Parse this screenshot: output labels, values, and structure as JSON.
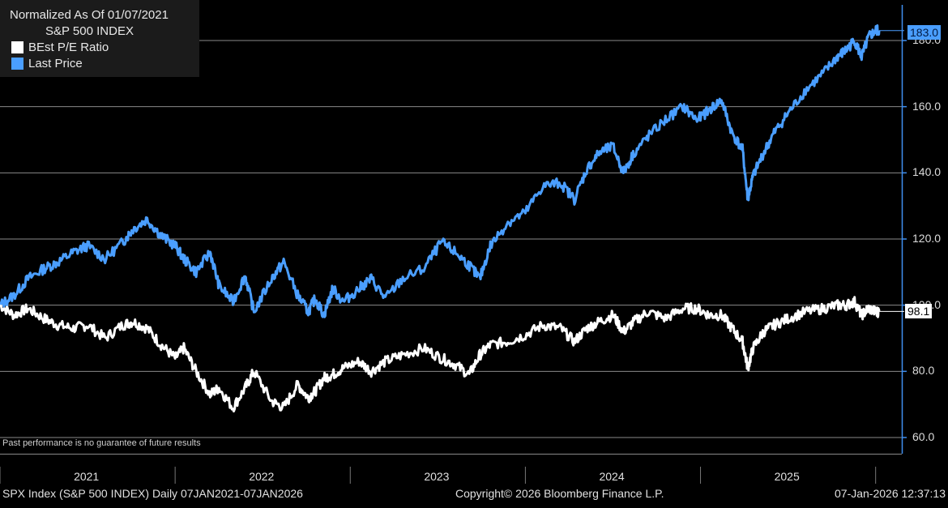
{
  "legend": {
    "title_line1": "Normalized As Of 01/07/2021",
    "title_line2": "S&P 500 INDEX",
    "series1_label": "BEst P/E Ratio",
    "series2_label": "Last Price"
  },
  "disclaimer": "Past performance is no guarantee of future results",
  "footer": {
    "left": "SPX Index (S&P 500 INDEX) Daily 07JAN2021-07JAN2026",
    "center": "Copyright© 2026 Bloomberg Finance L.P.",
    "right": "07-Jan-2026 12:37:13"
  },
  "colors": {
    "pe": "#ffffff",
    "price": "#4a9eff",
    "grid": "#8a8a8a",
    "axis": "#3f8ff0"
  },
  "chart_data": {
    "type": "line",
    "title": "S&P 500 INDEX — Normalized As Of 01/07/2021",
    "xlabel": "",
    "ylabel": "",
    "ylim": [
      60,
      185
    ],
    "yticks": [
      60,
      80,
      100,
      120,
      140,
      160,
      180
    ],
    "ytick_labels": [
      "60.0",
      "80.0",
      "100.0",
      "120.0",
      "140.0",
      "160.0",
      "180.0"
    ],
    "xlim": [
      2021.0,
      2026.02
    ],
    "year_labels": [
      "2021",
      "2022",
      "2023",
      "2024",
      "2025"
    ],
    "last_value_labels": {
      "price": "183.0",
      "pe": "98.1"
    },
    "series": [
      {
        "name": "Last Price",
        "color": "#4a9eff",
        "x": [
          2021.0,
          2021.08,
          2021.16,
          2021.25,
          2021.33,
          2021.42,
          2021.5,
          2021.6,
          2021.7,
          2021.76,
          2021.84,
          2021.92,
          2022.0,
          2022.05,
          2022.12,
          2022.2,
          2022.25,
          2022.33,
          2022.4,
          2022.45,
          2022.55,
          2022.62,
          2022.7,
          2022.76,
          2022.8,
          2022.85,
          2022.9,
          2022.96,
          2023.05,
          2023.12,
          2023.2,
          2023.3,
          2023.42,
          2023.52,
          2023.6,
          2023.68,
          2023.74,
          2023.8,
          2023.9,
          2024.0,
          2024.1,
          2024.2,
          2024.28,
          2024.35,
          2024.42,
          2024.5,
          2024.56,
          2024.62,
          2024.7,
          2024.8,
          2024.9,
          2024.98,
          2025.05,
          2025.12,
          2025.18,
          2025.24,
          2025.27,
          2025.3,
          2025.36,
          2025.42,
          2025.5,
          2025.6,
          2025.7,
          2025.78,
          2025.83,
          2025.88,
          2025.92,
          2025.96,
          2026.0,
          2026.02
        ],
        "values": [
          100,
          103,
          108,
          111,
          113,
          116,
          118,
          114,
          119,
          123,
          126,
          121,
          118,
          114,
          110,
          116,
          106,
          101,
          109,
          98,
          108,
          113,
          103,
          98,
          102,
          97,
          105,
          101,
          105,
          108,
          102,
          108,
          111,
          119,
          116,
          112,
          108,
          118,
          125,
          128,
          136,
          137,
          132,
          141,
          146,
          148,
          140,
          146,
          151,
          156,
          160,
          156,
          159,
          162,
          152,
          147,
          132,
          139,
          146,
          152,
          158,
          165,
          170,
          175,
          177,
          180,
          175,
          181,
          183,
          183
        ]
      },
      {
        "name": "BEst P/E Ratio",
        "color": "#ffffff",
        "x": [
          2021.0,
          2021.08,
          2021.16,
          2021.25,
          2021.33,
          2021.42,
          2021.5,
          2021.6,
          2021.7,
          2021.76,
          2021.84,
          2021.92,
          2022.0,
          2022.05,
          2022.12,
          2022.2,
          2022.25,
          2022.33,
          2022.4,
          2022.45,
          2022.55,
          2022.62,
          2022.7,
          2022.76,
          2022.8,
          2022.85,
          2022.9,
          2022.96,
          2023.05,
          2023.12,
          2023.2,
          2023.3,
          2023.42,
          2023.52,
          2023.6,
          2023.68,
          2023.74,
          2023.8,
          2023.9,
          2024.0,
          2024.1,
          2024.2,
          2024.28,
          2024.35,
          2024.42,
          2024.5,
          2024.56,
          2024.62,
          2024.7,
          2024.8,
          2024.9,
          2024.98,
          2025.05,
          2025.12,
          2025.18,
          2025.24,
          2025.27,
          2025.3,
          2025.36,
          2025.42,
          2025.5,
          2025.6,
          2025.7,
          2025.78,
          2025.83,
          2025.88,
          2025.92,
          2025.96,
          2026.0,
          2026.02
        ],
        "values": [
          100,
          97,
          99,
          96,
          94,
          93,
          94,
          90,
          94,
          95,
          93,
          88,
          84,
          87,
          80,
          73,
          75,
          69,
          75,
          80,
          71,
          69,
          76,
          72,
          74,
          78,
          79,
          81,
          83,
          80,
          83,
          85,
          87,
          84,
          82,
          79,
          85,
          88,
          89,
          91,
          94,
          93,
          89,
          93,
          95,
          97,
          92,
          95,
          98,
          96,
          99,
          99,
          97,
          97,
          93,
          89,
          81,
          87,
          92,
          94,
          96,
          98,
          99,
          100,
          100,
          101,
          97,
          99,
          98,
          98
        ]
      }
    ]
  }
}
